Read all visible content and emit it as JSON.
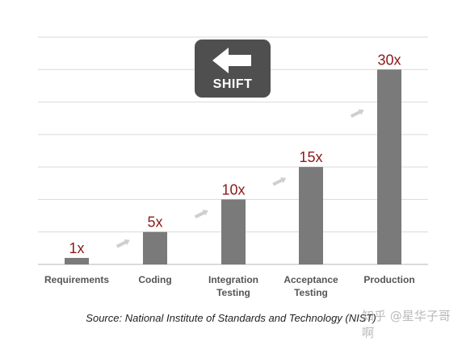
{
  "chart_data": {
    "type": "bar",
    "categories": [
      [
        "Requirements"
      ],
      [
        "Coding"
      ],
      [
        "Integration",
        "Testing"
      ],
      [
        "Acceptance",
        "Testing"
      ],
      [
        "Production"
      ]
    ],
    "values": [
      1,
      5,
      10,
      15,
      30
    ],
    "value_labels": [
      "1x",
      "5x",
      "10x",
      "15x",
      "30x"
    ],
    "ylim": [
      0,
      35
    ],
    "grid": true,
    "bar_color": "#7a7a7a",
    "value_label_color": "#8b1a1a"
  },
  "shift_box": {
    "label": "SHIFT",
    "icon": "left-arrow-icon"
  },
  "source": "Source: National Institute of Standards and Technology (NIST)",
  "watermark": "知乎 @星华子哥啊"
}
